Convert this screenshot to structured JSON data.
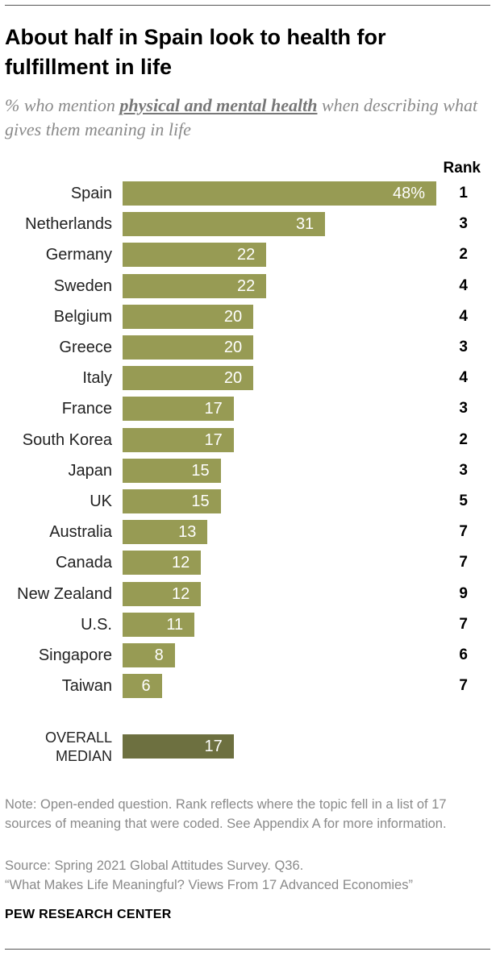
{
  "header": {
    "title": "About half in Spain look to health for fulfillment in life",
    "subtitle_prefix": "% who mention ",
    "subtitle_emphasis": "physical and mental health",
    "subtitle_suffix": " when describing what gives them meaning in life"
  },
  "chart_data": {
    "type": "bar",
    "orientation": "horizontal",
    "categories": [
      "Spain",
      "Netherlands",
      "Germany",
      "Sweden",
      "Belgium",
      "Greece",
      "Italy",
      "France",
      "South Korea",
      "Japan",
      "UK",
      "Australia",
      "Canada",
      "New Zealand",
      "U.S.",
      "Singapore",
      "Taiwan"
    ],
    "values": [
      48,
      31,
      22,
      22,
      20,
      20,
      20,
      17,
      17,
      15,
      15,
      13,
      12,
      12,
      11,
      8,
      6
    ],
    "value_labels": [
      "48%",
      "31",
      "22",
      "22",
      "20",
      "20",
      "20",
      "17",
      "17",
      "15",
      "15",
      "13",
      "12",
      "12",
      "11",
      "8",
      "6"
    ],
    "rank_header": "Rank",
    "ranks": [
      "1",
      "3",
      "2",
      "4",
      "4",
      "3",
      "4",
      "3",
      "2",
      "3",
      "5",
      "7",
      "7",
      "9",
      "7",
      "6",
      "7"
    ],
    "median": {
      "label_line1": "OVERALL",
      "label_line2": "MEDIAN",
      "value": 17,
      "value_label": "17"
    },
    "xlim": [
      0,
      48
    ],
    "colors": {
      "bar": "#979b54",
      "median_bar": "#6d7040"
    }
  },
  "footer": {
    "note": "Note: Open-ended question. Rank reflects where the topic fell in a list of 17 sources of meaning that were coded. See Appendix A for more information.",
    "source": "Source: Spring 2021 Global Attitudes Survey. Q36.",
    "report": "“What Makes Life Meaningful? Views From 17 Advanced Economies”",
    "brand": "PEW RESEARCH CENTER"
  }
}
